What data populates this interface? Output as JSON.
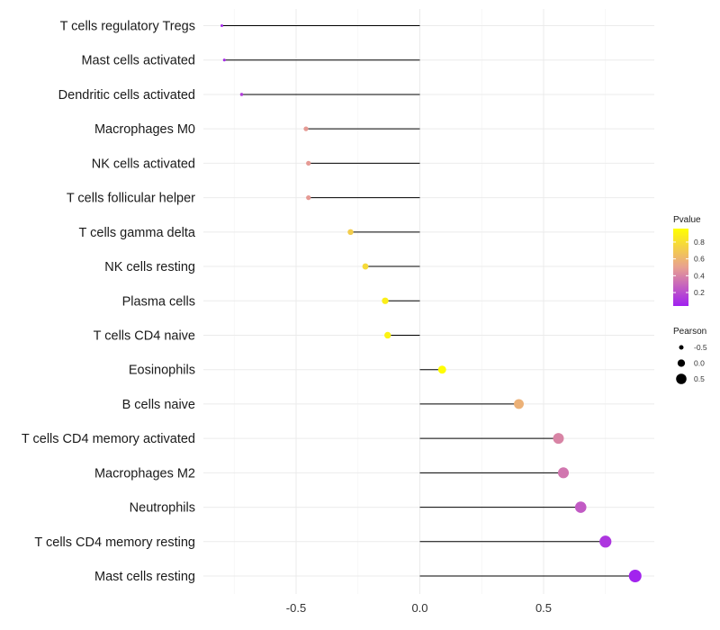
{
  "chart_data": {
    "type": "lollipop",
    "categories": [
      "T cells regulatory  Tregs",
      "Mast cells activated",
      "Dendritic cells activated",
      "Macrophages M0",
      "NK cells activated",
      "T cells follicular helper",
      "T cells gamma delta",
      "NK cells resting",
      "Plasma cells",
      "T cells CD4 naive",
      "Eosinophils",
      "B cells naive",
      "T cells CD4 memory activated",
      "Macrophages M2",
      "Neutrophils",
      "T cells CD4 memory resting",
      "Mast cells resting"
    ],
    "values": [
      -0.8,
      -0.79,
      -0.72,
      -0.46,
      -0.45,
      -0.45,
      -0.28,
      -0.22,
      -0.14,
      -0.13,
      0.09,
      0.4,
      0.56,
      0.58,
      0.65,
      0.75,
      0.87
    ],
    "pvalues": [
      0.07,
      0.08,
      0.15,
      0.48,
      0.48,
      0.48,
      0.72,
      0.78,
      0.88,
      0.9,
      0.95,
      0.58,
      0.4,
      0.35,
      0.25,
      0.12,
      0.05
    ],
    "xlim": [
      -0.9,
      0.95
    ],
    "x_ticks": [
      -0.5,
      0.0,
      0.5
    ],
    "x_tick_labels": [
      "-0.5",
      "0.0",
      "0.5"
    ],
    "legend_pvalue": {
      "title": "Pvalue",
      "ticks": [
        0.8,
        0.6,
        0.4,
        0.2
      ],
      "tick_labels": [
        "0.8",
        "0.6",
        "0.4",
        "0.2"
      ],
      "range": [
        0.04,
        0.96
      ],
      "color_low": "#a020f0",
      "color_mid": "#e8a090",
      "color_high": "#ffff00"
    },
    "legend_pearson": {
      "title": "Pearson",
      "values": [
        -0.5,
        0.0,
        0.5
      ],
      "labels": [
        "-0.5",
        "0.0",
        "0.5"
      ]
    },
    "point_size_range": [
      -0.8,
      0.87
    ],
    "grid": true,
    "legend_position": "right"
  }
}
